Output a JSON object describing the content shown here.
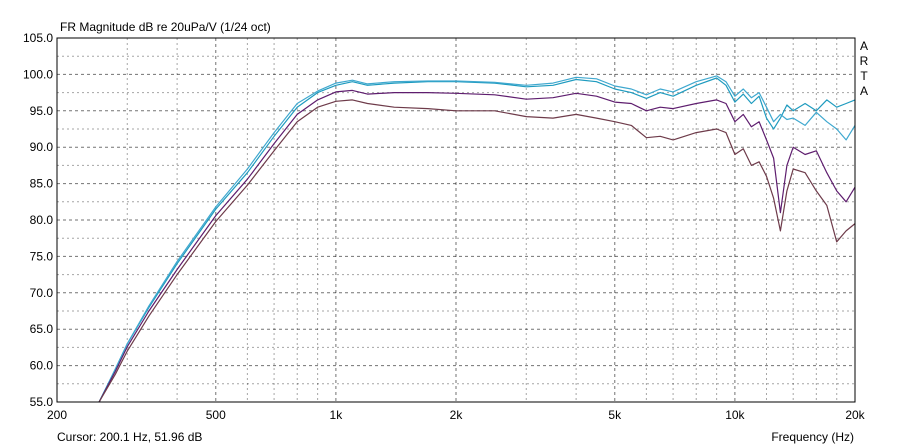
{
  "chart_data": {
    "type": "line",
    "title": "FR Magnitude dB re 20uPa/V (1/24 oct)",
    "xlabel": "Frequency (Hz)",
    "x_scale": "log",
    "xlim": [
      200,
      20000
    ],
    "ylim": [
      55,
      105
    ],
    "x_ticks": [
      {
        "value": 200,
        "label": "200"
      },
      {
        "value": 500,
        "label": "500"
      },
      {
        "value": 1000,
        "label": "1k"
      },
      {
        "value": 2000,
        "label": "2k"
      },
      {
        "value": 5000,
        "label": "5k"
      },
      {
        "value": 10000,
        "label": "10k"
      },
      {
        "value": 20000,
        "label": "20k"
      }
    ],
    "y_ticks": [
      {
        "value": 105,
        "label": "105.0"
      },
      {
        "value": 100,
        "label": "100.0"
      },
      {
        "value": 95,
        "label": "95.0"
      },
      {
        "value": 90,
        "label": "90.0"
      },
      {
        "value": 85,
        "label": "85.0"
      },
      {
        "value": 80,
        "label": "80.0"
      },
      {
        "value": 75,
        "label": "75.0"
      },
      {
        "value": 70,
        "label": "70.0"
      },
      {
        "value": 65,
        "label": "65.0"
      },
      {
        "value": 60,
        "label": "60.0"
      },
      {
        "value": 55,
        "label": "55.0"
      }
    ],
    "grid": true,
    "watermark_letters": [
      "A",
      "R",
      "T",
      "A"
    ],
    "cursor_text": "Cursor: 200.1 Hz, 51.96 dB",
    "series": [
      {
        "color": "#1e9bbf",
        "points": [
          [
            255,
            55
          ],
          [
            280,
            59.5
          ],
          [
            300,
            63
          ],
          [
            340,
            68
          ],
          [
            400,
            74
          ],
          [
            500,
            81.5
          ],
          [
            600,
            86.5
          ],
          [
            700,
            91.5
          ],
          [
            800,
            95.5
          ],
          [
            900,
            97.5
          ],
          [
            1000,
            98.5
          ],
          [
            1100,
            99
          ],
          [
            1200,
            98.5
          ],
          [
            1400,
            98.8
          ],
          [
            1700,
            99
          ],
          [
            2000,
            99
          ],
          [
            2500,
            98.8
          ],
          [
            3000,
            98.3
          ],
          [
            3500,
            98.5
          ],
          [
            4000,
            99.3
          ],
          [
            4500,
            99
          ],
          [
            5000,
            98
          ],
          [
            5500,
            97.5
          ],
          [
            6000,
            96.7
          ],
          [
            6500,
            97.5
          ],
          [
            7000,
            97
          ],
          [
            8000,
            98.5
          ],
          [
            9000,
            99.5
          ],
          [
            9500,
            98.5
          ],
          [
            10000,
            96.2
          ],
          [
            10500,
            97.3
          ],
          [
            11000,
            96
          ],
          [
            11500,
            97
          ],
          [
            12000,
            94
          ],
          [
            12500,
            92.5
          ],
          [
            13000,
            94
          ],
          [
            13500,
            95.8
          ],
          [
            14000,
            95
          ],
          [
            15000,
            96
          ],
          [
            16000,
            95
          ],
          [
            17000,
            96.5
          ],
          [
            18000,
            95.5
          ],
          [
            19000,
            96
          ],
          [
            20000,
            96.5
          ]
        ]
      },
      {
        "color": "#3fa8cf",
        "points": [
          [
            255,
            55
          ],
          [
            280,
            59.5
          ],
          [
            300,
            63
          ],
          [
            340,
            68.2
          ],
          [
            400,
            74.3
          ],
          [
            500,
            81.8
          ],
          [
            600,
            87
          ],
          [
            700,
            92
          ],
          [
            800,
            96
          ],
          [
            900,
            97.7
          ],
          [
            1000,
            98.8
          ],
          [
            1100,
            99.2
          ],
          [
            1200,
            98.7
          ],
          [
            1400,
            99
          ],
          [
            1700,
            99.1
          ],
          [
            2000,
            99.1
          ],
          [
            2500,
            98.9
          ],
          [
            3000,
            98.5
          ],
          [
            3500,
            98.8
          ],
          [
            4000,
            99.6
          ],
          [
            4500,
            99.4
          ],
          [
            5000,
            98.4
          ],
          [
            5500,
            98
          ],
          [
            6000,
            97.2
          ],
          [
            6500,
            98
          ],
          [
            7000,
            97.6
          ],
          [
            8000,
            99
          ],
          [
            9000,
            99.8
          ],
          [
            9500,
            99
          ],
          [
            10000,
            97
          ],
          [
            10500,
            98
          ],
          [
            11000,
            96.8
          ],
          [
            11500,
            97.5
          ],
          [
            12000,
            95.5
          ],
          [
            12500,
            93.5
          ],
          [
            13000,
            94.5
          ],
          [
            13500,
            93.8
          ],
          [
            14000,
            94
          ],
          [
            15000,
            93
          ],
          [
            16000,
            94.8
          ],
          [
            17000,
            93.5
          ],
          [
            18000,
            92.5
          ],
          [
            19000,
            91
          ],
          [
            20000,
            93
          ]
        ]
      },
      {
        "color": "#5e1d6e",
        "points": [
          [
            255,
            55
          ],
          [
            280,
            59.2
          ],
          [
            300,
            62.6
          ],
          [
            340,
            67.5
          ],
          [
            400,
            73.2
          ],
          [
            500,
            80.6
          ],
          [
            600,
            85.6
          ],
          [
            700,
            90.5
          ],
          [
            800,
            94.5
          ],
          [
            900,
            96.5
          ],
          [
            1000,
            97.6
          ],
          [
            1100,
            97.8
          ],
          [
            1200,
            97.3
          ],
          [
            1400,
            97.5
          ],
          [
            1700,
            97.5
          ],
          [
            2000,
            97.4
          ],
          [
            2500,
            97.2
          ],
          [
            3000,
            96.6
          ],
          [
            3500,
            96.8
          ],
          [
            4000,
            97.4
          ],
          [
            4500,
            97
          ],
          [
            5000,
            96.2
          ],
          [
            5500,
            96
          ],
          [
            6000,
            95
          ],
          [
            6500,
            95.5
          ],
          [
            7000,
            95.3
          ],
          [
            8000,
            96
          ],
          [
            9000,
            96.5
          ],
          [
            9500,
            96
          ],
          [
            10000,
            93.5
          ],
          [
            10500,
            94.5
          ],
          [
            11000,
            92.8
          ],
          [
            11500,
            93.5
          ],
          [
            12000,
            91
          ],
          [
            12500,
            88.5
          ],
          [
            13000,
            81
          ],
          [
            13500,
            87.5
          ],
          [
            14000,
            90
          ],
          [
            15000,
            89
          ],
          [
            16000,
            89.5
          ],
          [
            17000,
            86.5
          ],
          [
            18000,
            84
          ],
          [
            19000,
            82.5
          ],
          [
            20000,
            84.5
          ]
        ]
      },
      {
        "color": "#6e3b4a",
        "points": [
          [
            255,
            55
          ],
          [
            280,
            58.8
          ],
          [
            300,
            62
          ],
          [
            340,
            66.8
          ],
          [
            400,
            72.5
          ],
          [
            500,
            79.8
          ],
          [
            600,
            84.8
          ],
          [
            700,
            89.5
          ],
          [
            800,
            93.5
          ],
          [
            900,
            95.5
          ],
          [
            1000,
            96.3
          ],
          [
            1100,
            96.5
          ],
          [
            1200,
            96
          ],
          [
            1400,
            95.5
          ],
          [
            1700,
            95.3
          ],
          [
            2000,
            95
          ],
          [
            2500,
            95
          ],
          [
            3000,
            94.2
          ],
          [
            3500,
            94
          ],
          [
            4000,
            94.5
          ],
          [
            4500,
            94
          ],
          [
            5000,
            93.5
          ],
          [
            5500,
            93
          ],
          [
            6000,
            91.3
          ],
          [
            6500,
            91.5
          ],
          [
            7000,
            91
          ],
          [
            8000,
            92
          ],
          [
            9000,
            92.5
          ],
          [
            9500,
            92
          ],
          [
            10000,
            89
          ],
          [
            10500,
            89.8
          ],
          [
            11000,
            87.5
          ],
          [
            11500,
            88
          ],
          [
            12000,
            86
          ],
          [
            12500,
            83
          ],
          [
            13000,
            78.5
          ],
          [
            13500,
            84
          ],
          [
            14000,
            87
          ],
          [
            15000,
            86.5
          ],
          [
            16000,
            84
          ],
          [
            17000,
            82
          ],
          [
            18000,
            77
          ],
          [
            19000,
            78.5
          ],
          [
            20000,
            79.5
          ]
        ]
      }
    ]
  }
}
